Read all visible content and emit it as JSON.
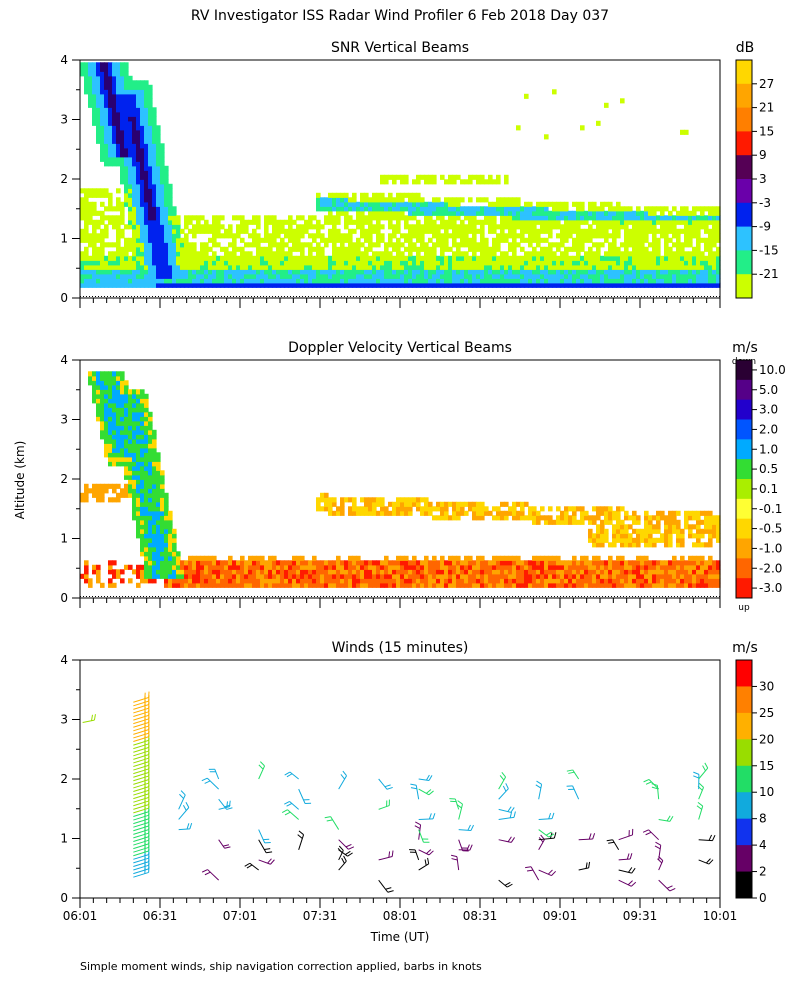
{
  "title": "RV Investigator ISS Radar Wind Profiler    6 Feb 2018 Day 037",
  "ylabel": "Altitude (km)",
  "xlabel": "Time (UT)",
  "footnote": "Simple moment winds, ship navigation correction applied, barbs in knots",
  "chart_data": [
    {
      "type": "heatmap",
      "title": "SNR Vertical Beams",
      "unit": "dB",
      "x_ticks": [
        "06:01",
        "06:31",
        "07:01",
        "07:31",
        "08:01",
        "08:31",
        "09:01",
        "09:31",
        "10:01"
      ],
      "y_ticks": [
        "0",
        "1",
        "2",
        "3",
        "4"
      ],
      "xlim_minutes_after_0601": [
        0,
        240
      ],
      "ylim_km": [
        0,
        4
      ],
      "colorbar_ticks": [
        "27",
        "21",
        "15",
        "9",
        "3",
        "-3",
        "-9",
        "-15",
        "-21"
      ],
      "colorbar_colors": [
        "#ffd700",
        "#ffa500",
        "#ff7f00",
        "#ff1a00",
        "#550055",
        "#6a00aa",
        "#0022ee",
        "#2dc2ff",
        "#22ee88",
        "#ccff00"
      ],
      "features": [
        {
          "desc": "plume",
          "x0_min": 5,
          "x1_min": 30,
          "ymax_km": 3.9,
          "color_core": "#0022ee"
        },
        {
          "desc": "boundary layer",
          "x_min": [
            0,
            240
          ],
          "y_km": [
            0.2,
            0.7
          ]
        },
        {
          "desc": "elevated layer",
          "x_min": [
            90,
            240
          ],
          "y_km": [
            1.2,
            1.8
          ]
        }
      ]
    },
    {
      "type": "heatmap",
      "title": "Doppler Velocity Vertical Beams",
      "unit": "m/s",
      "x_ticks": [
        "06:01",
        "06:31",
        "07:01",
        "07:31",
        "08:01",
        "08:31",
        "09:01",
        "09:31",
        "10:01"
      ],
      "y_ticks": [
        "0",
        "1",
        "2",
        "3",
        "4"
      ],
      "colorbar_top_label": "down",
      "colorbar_bottom_label": "up",
      "colorbar_ticks": [
        "10.0",
        "5.0",
        "3.0",
        "2.0",
        "1.0",
        "0.5",
        "0.1",
        "-0.1",
        "-0.5",
        "-1.0",
        "-2.0",
        "-3.0"
      ],
      "colorbar_colors": [
        "#2a0033",
        "#550088",
        "#2200cc",
        "#0055ff",
        "#00aaff",
        "#33dd33",
        "#aaee00",
        "#ffff33",
        "#ffd700",
        "#ffa500",
        "#ff6600",
        "#ff1a00"
      ]
    },
    {
      "type": "scatter",
      "title": "Winds (15 minutes)",
      "unit": "m/s",
      "x_ticks": [
        "06:01",
        "06:31",
        "07:01",
        "07:31",
        "08:01",
        "08:31",
        "09:01",
        "09:31",
        "10:01"
      ],
      "y_ticks": [
        "0",
        "1",
        "2",
        "3",
        "4"
      ],
      "colorbar_ticks": [
        "30",
        "25",
        "20",
        "15",
        "10",
        "8",
        "4",
        "2",
        "0"
      ],
      "colorbar_colors": [
        "#ff0000",
        "#ff8000",
        "#ffb000",
        "#99dd00",
        "#22dd66",
        "#11aadd",
        "#1133ee",
        "#660066",
        "#000000"
      ]
    }
  ]
}
